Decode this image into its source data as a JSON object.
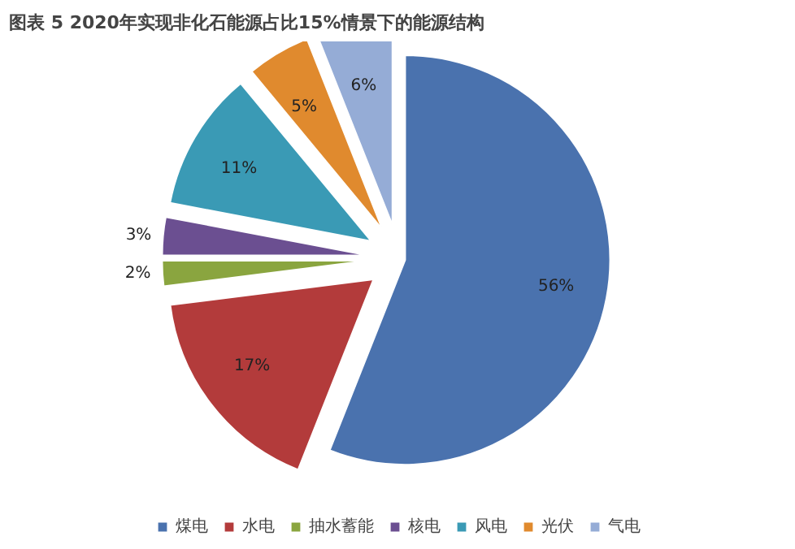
{
  "chart_data": {
    "type": "pie",
    "title": "图表 5 2020年实现非化石能源占比15%情景下的能源结构",
    "categories": [
      "煤电",
      "水电",
      "抽水蓄能",
      "核电",
      "风电",
      "光伏",
      "气电"
    ],
    "values": [
      56,
      17,
      2,
      3,
      11,
      5,
      6
    ],
    "colors": [
      "#4a72ae",
      "#b33b3b",
      "#8aa53f",
      "#6b4f91",
      "#3a9ab5",
      "#e08a2e",
      "#95acd6"
    ],
    "value_labels": [
      "56%",
      "17%",
      "2%",
      "3%",
      "11%",
      "5%",
      "6%"
    ],
    "legend": "bottom"
  }
}
